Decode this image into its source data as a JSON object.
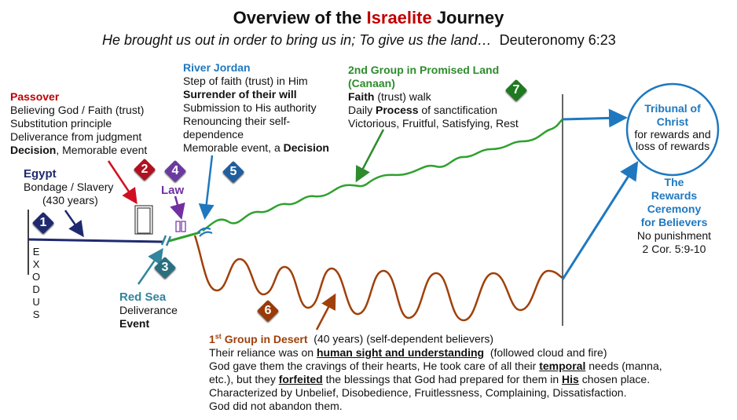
{
  "title": {
    "pre": "Overview of the ",
    "accent": "Israelite",
    "post": " Journey"
  },
  "subtitle": {
    "quote": "He brought us out in order to bring us in; To give us the land…",
    "ref": "Deuteronomy 6:23"
  },
  "colors": {
    "accent": "#c00000",
    "egypt": "#1f2a6e",
    "passover": "#c00000",
    "law": "#7030a0",
    "redsea": "#31859c",
    "jordan": "#1f78bf",
    "promised": "#2e8b2e",
    "desert": "#a0400a",
    "tribunal": "#1f78bf"
  },
  "passover": {
    "title": "Passover",
    "lines": [
      "Believing God / Faith (trust)",
      "Substitution principle",
      "Deliverance from judgment"
    ],
    "decision": "Decision",
    "decision_rest": ", Memorable event"
  },
  "egypt": {
    "title": "Egypt",
    "line1": "Bondage / Slavery",
    "line2": "(430 years)"
  },
  "exodus": [
    "E",
    "X",
    "O",
    "D",
    "U",
    "S"
  ],
  "law": {
    "title": "Law"
  },
  "redsea": {
    "title": "Red Sea",
    "line1": "Deliverance",
    "line2": "Event"
  },
  "jordan": {
    "title": "River Jordan",
    "line1": "Step of faith (trust) in Him",
    "line2": "Surrender of their will",
    "line3": "Submission to His authority",
    "line4": "Renouncing their self-",
    "line5": "dependence",
    "line6": "Memorable event, a ",
    "line6b": "Decision"
  },
  "promised": {
    "title1": "2nd Group in Promised Land",
    "title2": "(Canaan)",
    "l1a": "Faith",
    "l1b": " (trust) walk",
    "l2a": "Daily ",
    "l2b": "Process",
    "l2c": " of sanctification",
    "l3": "Victorious, Fruitful, Satisfying, Rest"
  },
  "tribunal": {
    "t1": "Tribunal of",
    "t2": "Christ",
    "l1": "for rewards and",
    "l2": "loss of rewards"
  },
  "ceremony": {
    "t1": "The",
    "t2": "Rewards",
    "t3": "Ceremony",
    "t4": "for Believers",
    "l1": "No punishment",
    "l2": "2 Cor. 5:9-10"
  },
  "desert": {
    "t_num": "1",
    "t_sup": "st",
    "t_rest": " Group in Desert",
    "t_after": "  (40 years) (self-dependent believers)",
    "l1a": "Their reliance was on ",
    "l1b": "human sight and understanding",
    "l1c": "  (followed cloud and fire)",
    "l2a": "God gave them the cravings of their hearts, He took care of all their ",
    "l2b": "temporal",
    "l2c": " needs (manna,",
    "l3a": "etc.), but they ",
    "l3b": "forfeited",
    "l3c": " the blessings that God had prepared for them in ",
    "l3d": "His",
    "l3e": " chosen place.",
    "l4": "Characterized by Unbelief, Disobedience, Fruitlessness, Complaining, Dissatisfaction.",
    "l5": "God did not abandon them."
  },
  "markers": [
    {
      "n": "1",
      "color": "#1f2a6e"
    },
    {
      "n": "2",
      "color": "#b01020"
    },
    {
      "n": "3",
      "color": "#2a6f7f"
    },
    {
      "n": "4",
      "color": "#6a3aa0"
    },
    {
      "n": "5",
      "color": "#1f5f9f"
    },
    {
      "n": "6",
      "color": "#9a3a08"
    },
    {
      "n": "7",
      "color": "#1e7a1e"
    }
  ]
}
